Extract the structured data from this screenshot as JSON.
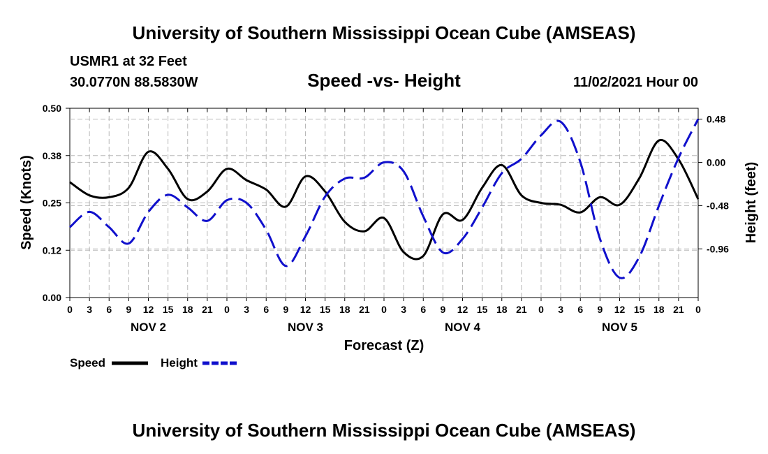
{
  "header": {
    "title": "University of Southern Mississippi Ocean Cube (AMSEAS)",
    "station": "USMR1 at 32 Feet",
    "coords": "30.0770N  88.5830W",
    "chart_title": "Speed -vs- Height",
    "date": "11/02/2021 Hour 00"
  },
  "footer": {
    "title": "University of Southern Mississippi Ocean Cube (AMSEAS)"
  },
  "chart_data": {
    "type": "line",
    "title": "Speed -vs- Height",
    "xlabel": "Forecast (Z)",
    "ylabel": "Speed (Knots)",
    "ylabel_right": "Height (feet)",
    "x_tick_labels": [
      "0",
      "3",
      "6",
      "9",
      "12",
      "15",
      "18",
      "21",
      "0",
      "3",
      "6",
      "9",
      "12",
      "15",
      "18",
      "21",
      "0",
      "3",
      "6",
      "9",
      "12",
      "15",
      "18",
      "21",
      "0",
      "3",
      "6",
      "9",
      "12",
      "15",
      "18",
      "21",
      "0"
    ],
    "day_labels": [
      "NOV 2",
      "NOV 3",
      "NOV 4",
      "NOV 5"
    ],
    "ylim": [
      0,
      0.5
    ],
    "y_ticks": [
      "0.00",
      "0.12",
      "0.25",
      "0.38",
      "0.50"
    ],
    "y_tick_values": [
      0,
      0.125,
      0.25,
      0.375,
      0.5
    ],
    "y2lim": [
      -1.5,
      0.6
    ],
    "y2_ticks": [
      "-0.96",
      "-0.48",
      "0.00",
      "0.48"
    ],
    "y2_tick_values": [
      -0.96,
      -0.48,
      0,
      0.48
    ],
    "grid": true,
    "legend_position": "bottom-left",
    "series": [
      {
        "name": "Speed",
        "axis": "left",
        "color": "#000000",
        "style": "solid",
        "x": [
          0,
          3,
          6,
          9,
          12,
          15,
          18,
          21,
          24,
          27,
          30,
          33,
          36,
          39,
          42,
          45,
          48,
          51,
          54,
          57,
          60,
          63,
          66,
          69,
          72,
          75,
          78,
          81,
          84,
          87,
          90,
          93,
          96
        ],
        "values": [
          0.305,
          0.27,
          0.265,
          0.29,
          0.385,
          0.34,
          0.26,
          0.28,
          0.34,
          0.31,
          0.285,
          0.24,
          0.32,
          0.28,
          0.2,
          0.175,
          0.21,
          0.12,
          0.11,
          0.22,
          0.205,
          0.29,
          0.35,
          0.27,
          0.25,
          0.245,
          0.225,
          0.265,
          0.245,
          0.315,
          0.415,
          0.365,
          0.26
        ]
      },
      {
        "name": "Height",
        "axis": "right",
        "color": "#1010cc",
        "style": "dashed",
        "x": [
          0,
          3,
          6,
          9,
          12,
          15,
          18,
          21,
          24,
          27,
          30,
          33,
          36,
          39,
          42,
          45,
          48,
          51,
          54,
          57,
          60,
          63,
          66,
          69,
          72,
          75,
          78,
          81,
          84,
          87,
          90,
          93,
          96
        ],
        "values": [
          -0.72,
          -0.55,
          -0.72,
          -0.9,
          -0.55,
          -0.36,
          -0.5,
          -0.65,
          -0.42,
          -0.45,
          -0.75,
          -1.15,
          -0.82,
          -0.38,
          -0.18,
          -0.17,
          0.0,
          -0.1,
          -0.6,
          -1.0,
          -0.85,
          -0.5,
          -0.12,
          0.04,
          0.3,
          0.45,
          0.0,
          -0.85,
          -1.28,
          -1.05,
          -0.48,
          0.05,
          0.48
        ]
      }
    ]
  }
}
